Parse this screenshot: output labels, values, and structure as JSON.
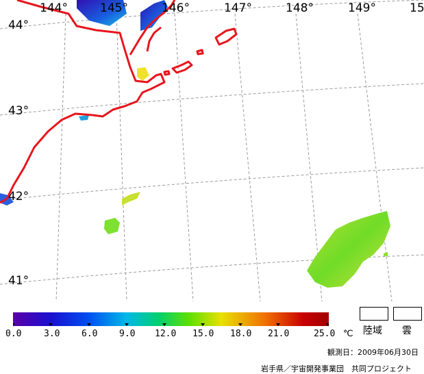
{
  "map": {
    "longitude_labels": [
      "144°",
      "145°",
      "146°",
      "147°",
      "148°",
      "149°",
      "15"
    ],
    "latitude_labels": [
      "44°",
      "43°",
      "42°",
      "41°"
    ],
    "colors": {
      "coastline": "#e8141c",
      "grid": "#9a9a9a",
      "warm_patch": "#8ee030",
      "cool_patch": "#2a20c8"
    }
  },
  "colorbar": {
    "ticks": [
      "0.0",
      "3.0",
      "6.0",
      "9.0",
      "12.0",
      "15.0",
      "18.0",
      "21.0",
      "25.0"
    ],
    "unit": "℃",
    "range": [
      0.0,
      25.0
    ],
    "colors": [
      "#5a00a8",
      "#1a10d0",
      "#0050f0",
      "#00b8e8",
      "#00d070",
      "#60e000",
      "#e8e000",
      "#f07000",
      "#c80000",
      "#a00000"
    ]
  },
  "legend": {
    "land_label": "陸域",
    "cloud_label": "雲"
  },
  "observation_date": "観測日：2009年06月30日",
  "credit": "岩手県／宇宙開発事業団　共同プロジェクト"
}
